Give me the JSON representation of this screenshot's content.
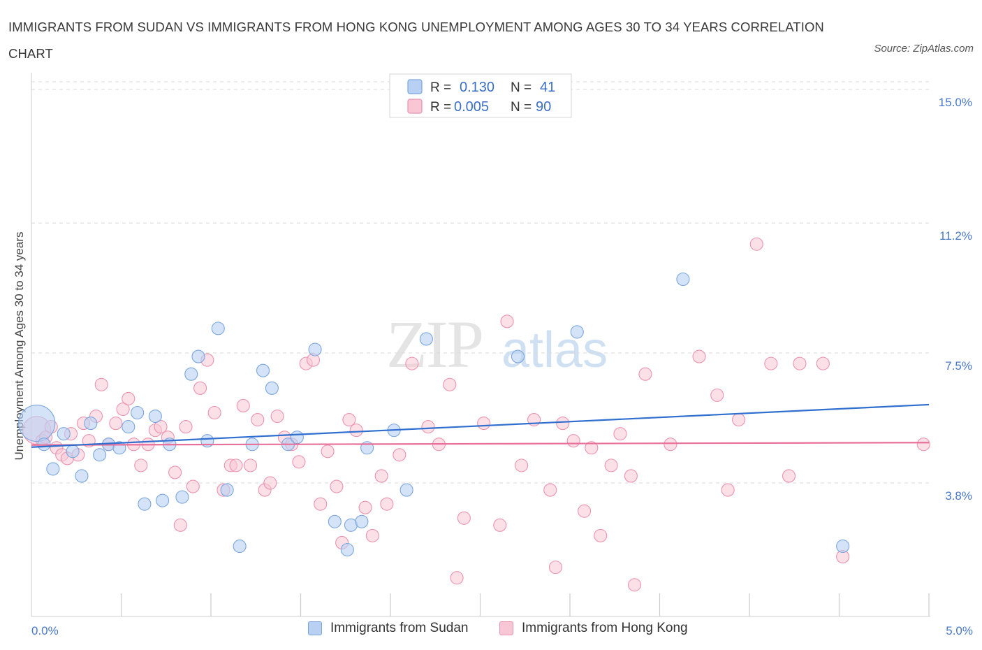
{
  "header": {
    "title": "IMMIGRANTS FROM SUDAN VS IMMIGRANTS FROM HONG KONG UNEMPLOYMENT AMONG AGES 30 TO 34 YEARS CORRELATION CHART",
    "source": "Source: ZipAtlas.com"
  },
  "watermark": {
    "zip": "ZIP",
    "atlas": "atlas"
  },
  "colors": {
    "sudan_fill": "#b8d1f3",
    "sudan_stroke": "#7aa6e0",
    "sudan_line": "#2f6fcf",
    "hk_fill": "#f8c6d5",
    "hk_stroke": "#ec93ae",
    "hk_line": "#e8709a",
    "axis_label": "#4a78c8",
    "grid": "#d9d9d9"
  },
  "legend": {
    "rows": [
      {
        "r_label": "R = ",
        "r_value": "0.130",
        "n_label": "N = ",
        "n_value": "41"
      },
      {
        "r_label": "R = ",
        "r_value": "0.005",
        "n_label": "N = ",
        "n_value": "90"
      }
    ],
    "bottom": [
      "Immigrants from Sudan",
      "Immigrants from Hong Kong"
    ]
  },
  "chart_data": {
    "type": "scatter",
    "title": "IMMIGRANTS FROM SUDAN VS IMMIGRANTS FROM HONG KONG UNEMPLOYMENT AMONG AGES 30 TO 34 YEARS CORRELATION CHART",
    "xlabel": "",
    "ylabel": "Unemployment Among Ages 30 to 34 years",
    "xlim": [
      0,
      5.0
    ],
    "ylim": [
      0,
      15.4
    ],
    "x_tick_labels": [
      "0.0%",
      "5.0%"
    ],
    "y_ticks": [
      3.8,
      7.5,
      11.2,
      15.0
    ],
    "y_tick_labels": [
      "3.8%",
      "7.5%",
      "11.2%",
      "15.0%"
    ],
    "grid": true,
    "legend_position": "top-center",
    "series": [
      {
        "name": "Immigrants from Sudan",
        "r": 0.13,
        "n": 41,
        "trend": [
          [
            0,
            4.82
          ],
          [
            5.0,
            6.03
          ]
        ],
        "points": [
          [
            0.03,
            5.5,
            26
          ],
          [
            0.07,
            4.9,
            9
          ],
          [
            0.12,
            4.2,
            9
          ],
          [
            0.18,
            5.2,
            9
          ],
          [
            0.23,
            4.7,
            9
          ],
          [
            0.28,
            4.0,
            9
          ],
          [
            0.33,
            5.5,
            9
          ],
          [
            0.38,
            4.6,
            9
          ],
          [
            0.43,
            4.9,
            9
          ],
          [
            0.49,
            4.8,
            9
          ],
          [
            0.54,
            5.4,
            9
          ],
          [
            0.59,
            5.8,
            9
          ],
          [
            0.63,
            3.2,
            9
          ],
          [
            0.69,
            5.7,
            9
          ],
          [
            0.73,
            3.3,
            9
          ],
          [
            0.77,
            4.9,
            9
          ],
          [
            0.84,
            3.4,
            9
          ],
          [
            0.89,
            6.9,
            9
          ],
          [
            0.93,
            7.4,
            9
          ],
          [
            0.98,
            5.0,
            9
          ],
          [
            1.04,
            8.2,
            9
          ],
          [
            1.09,
            3.6,
            9
          ],
          [
            1.16,
            2.0,
            9
          ],
          [
            1.23,
            4.9,
            9
          ],
          [
            1.29,
            7.0,
            9
          ],
          [
            1.34,
            6.5,
            9
          ],
          [
            1.43,
            4.9,
            9
          ],
          [
            1.48,
            5.1,
            9
          ],
          [
            1.58,
            7.6,
            9
          ],
          [
            1.69,
            2.7,
            9
          ],
          [
            1.76,
            1.9,
            9
          ],
          [
            1.78,
            2.6,
            9
          ],
          [
            1.84,
            2.7,
            9
          ],
          [
            1.87,
            4.8,
            9
          ],
          [
            2.02,
            5.3,
            9
          ],
          [
            2.09,
            3.6,
            9
          ],
          [
            2.2,
            7.9,
            9
          ],
          [
            2.71,
            7.4,
            9
          ],
          [
            3.04,
            8.1,
            9
          ],
          [
            3.63,
            9.6,
            9
          ],
          [
            4.52,
            2.0,
            9
          ]
        ]
      },
      {
        "name": "Immigrants from Hong Kong",
        "r": 0.005,
        "n": 90,
        "trend": [
          [
            0,
            4.88
          ],
          [
            5.0,
            4.95
          ]
        ],
        "points": [
          [
            0.03,
            5.3,
            20
          ],
          [
            0.06,
            5.0,
            9
          ],
          [
            0.08,
            5.1,
            9
          ],
          [
            0.11,
            5.4,
            9
          ],
          [
            0.14,
            4.8,
            9
          ],
          [
            0.17,
            4.6,
            9
          ],
          [
            0.2,
            4.5,
            9
          ],
          [
            0.22,
            5.2,
            9
          ],
          [
            0.26,
            4.6,
            9
          ],
          [
            0.29,
            5.5,
            9
          ],
          [
            0.32,
            5.0,
            9
          ],
          [
            0.36,
            5.7,
            9
          ],
          [
            0.39,
            6.6,
            9
          ],
          [
            0.43,
            4.9,
            9
          ],
          [
            0.47,
            5.5,
            9
          ],
          [
            0.51,
            5.9,
            9
          ],
          [
            0.54,
            6.2,
            9
          ],
          [
            0.57,
            4.9,
            9
          ],
          [
            0.61,
            4.3,
            9
          ],
          [
            0.65,
            4.9,
            9
          ],
          [
            0.69,
            5.3,
            9
          ],
          [
            0.72,
            5.4,
            9
          ],
          [
            0.76,
            5.1,
            9
          ],
          [
            0.8,
            4.1,
            9
          ],
          [
            0.83,
            2.6,
            9
          ],
          [
            0.86,
            5.4,
            9
          ],
          [
            0.9,
            3.7,
            9
          ],
          [
            0.94,
            6.5,
            9
          ],
          [
            0.98,
            7.3,
            9
          ],
          [
            1.02,
            5.8,
            9
          ],
          [
            1.07,
            3.6,
            9
          ],
          [
            1.11,
            4.3,
            9
          ],
          [
            1.14,
            4.3,
            9
          ],
          [
            1.18,
            6.0,
            9
          ],
          [
            1.22,
            4.3,
            9
          ],
          [
            1.26,
            5.6,
            9
          ],
          [
            1.3,
            3.6,
            9
          ],
          [
            1.33,
            3.8,
            9
          ],
          [
            1.37,
            5.7,
            9
          ],
          [
            1.41,
            5.1,
            9
          ],
          [
            1.45,
            4.9,
            9
          ],
          [
            1.49,
            4.4,
            9
          ],
          [
            1.53,
            7.2,
            9
          ],
          [
            1.57,
            7.3,
            9
          ],
          [
            1.61,
            3.2,
            9
          ],
          [
            1.65,
            4.7,
            9
          ],
          [
            1.7,
            3.7,
            9
          ],
          [
            1.73,
            2.1,
            9
          ],
          [
            1.77,
            5.6,
            9
          ],
          [
            1.81,
            5.3,
            9
          ],
          [
            1.86,
            3.1,
            9
          ],
          [
            1.9,
            2.3,
            9
          ],
          [
            1.95,
            4.0,
            9
          ],
          [
            1.98,
            3.2,
            9
          ],
          [
            2.05,
            4.6,
            9
          ],
          [
            2.12,
            7.2,
            9
          ],
          [
            2.21,
            5.4,
            9
          ],
          [
            2.27,
            4.9,
            9
          ],
          [
            2.33,
            6.6,
            9
          ],
          [
            2.37,
            1.1,
            9
          ],
          [
            2.41,
            2.8,
            9
          ],
          [
            2.52,
            5.5,
            9
          ],
          [
            2.61,
            2.6,
            9
          ],
          [
            2.65,
            8.4,
            9
          ],
          [
            2.73,
            4.3,
            9
          ],
          [
            2.8,
            5.6,
            9
          ],
          [
            2.89,
            3.6,
            9
          ],
          [
            2.92,
            1.4,
            9
          ],
          [
            2.96,
            5.5,
            9
          ],
          [
            3.02,
            5.0,
            9
          ],
          [
            3.08,
            3.0,
            9
          ],
          [
            3.12,
            4.8,
            9
          ],
          [
            3.17,
            2.3,
            9
          ],
          [
            3.23,
            4.3,
            9
          ],
          [
            3.28,
            5.2,
            9
          ],
          [
            3.34,
            4.0,
            9
          ],
          [
            3.36,
            0.9,
            9
          ],
          [
            3.42,
            6.9,
            9
          ],
          [
            3.56,
            4.9,
            9
          ],
          [
            3.72,
            7.4,
            9
          ],
          [
            3.82,
            6.3,
            9
          ],
          [
            3.88,
            3.6,
            9
          ],
          [
            3.94,
            5.6,
            9
          ],
          [
            4.04,
            10.6,
            9
          ],
          [
            4.12,
            7.2,
            9
          ],
          [
            4.22,
            4.0,
            9
          ],
          [
            4.28,
            7.2,
            9
          ],
          [
            4.41,
            7.2,
            9
          ],
          [
            4.52,
            1.7,
            9
          ],
          [
            4.97,
            4.9,
            9
          ]
        ]
      }
    ]
  }
}
